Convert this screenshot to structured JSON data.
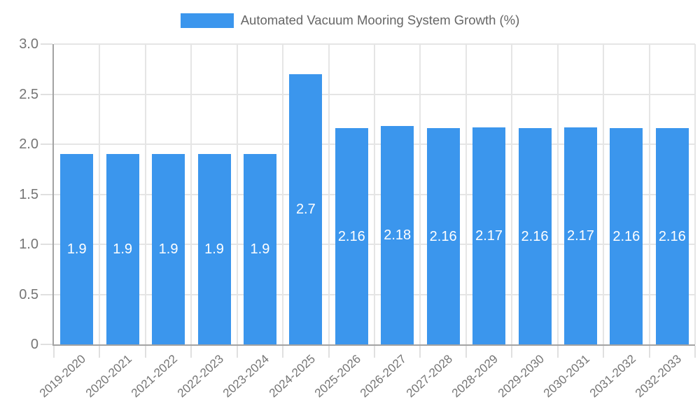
{
  "legend": {
    "label": "Automated Vacuum Mooring System Growth (%)"
  },
  "colors": {
    "bar": "#3B96ED",
    "gridline": "#E5E5E5",
    "tick": "#E0E0E0",
    "axis_border": "#A3A3A3",
    "tick_label_text": "#757575",
    "legend_text": "#666666",
    "bar_label_text": "#FFFFFF"
  },
  "chart_data": {
    "type": "bar",
    "title": "Automated Vacuum Mooring System Growth (%)",
    "categories": [
      "2019-2020",
      "2020-2021",
      "2021-2022",
      "2022-2023",
      "2023-2024",
      "2024-2025",
      "2025-2026",
      "2026-2027",
      "2027-2028",
      "2028-2029",
      "2029-2030",
      "2030-2031",
      "2031-2032",
      "2032-2033"
    ],
    "values": [
      1.9,
      1.9,
      1.9,
      1.9,
      1.9,
      2.7,
      2.16,
      2.18,
      2.16,
      2.17,
      2.16,
      2.17,
      2.16,
      2.16
    ],
    "bar_value_labels": [
      "1.9",
      "1.9",
      "1.9",
      "1.9",
      "1.9",
      "2.7",
      "2.16",
      "2.18",
      "2.16",
      "2.17",
      "2.16",
      "2.17",
      "2.16",
      "2.16"
    ],
    "xlabel": "",
    "ylabel": "",
    "ylim": [
      0,
      3.0
    ],
    "y_tick_values": [
      3.0,
      2.5,
      2.0,
      1.5,
      1.0,
      0.5,
      0
    ],
    "y_tick_labels": [
      "3.0",
      "2.5",
      "2.0",
      "1.5",
      "1.0",
      "0.5",
      "0"
    ],
    "grid": true,
    "legend_position": "top",
    "bar_label_position": "inside-center"
  }
}
